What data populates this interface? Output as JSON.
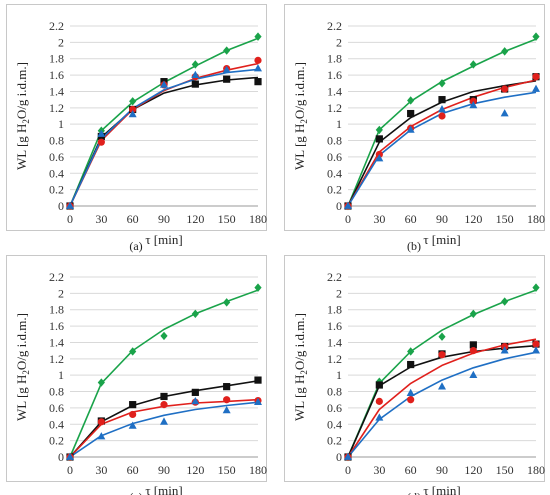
{
  "chart_data": [
    {
      "panel_label": "(a)",
      "type": "scatter",
      "xlabel": "τ [min]",
      "ylabel": "WL [g H2O/g i.d.m.]",
      "x_ticks": [
        0,
        30,
        60,
        90,
        120,
        150,
        180
      ],
      "y_ticks": [
        "0",
        "0.2",
        "0.4",
        "0.6",
        "0.8",
        "1",
        "1.2",
        "1.4",
        "1.6",
        "1.8",
        "2",
        "2.2"
      ],
      "xlim": [
        0,
        180
      ],
      "ylim": [
        0,
        2.2
      ],
      "grid": "horizontal",
      "series": [
        {
          "color": "#1aa34a",
          "marker": "diamond",
          "x": [
            0,
            30,
            60,
            90,
            120,
            150,
            180
          ],
          "values": [
            0,
            0.92,
            1.28,
            1.5,
            1.73,
            1.9,
            2.07
          ],
          "fit": [
            0,
            0.92,
            1.27,
            1.51,
            1.71,
            1.9,
            2.05
          ]
        },
        {
          "color": "#111111",
          "marker": "square",
          "x": [
            0,
            30,
            60,
            90,
            120,
            150,
            180
          ],
          "values": [
            0,
            0.85,
            1.18,
            1.52,
            1.49,
            1.55,
            1.52
          ],
          "fit": [
            0,
            0.84,
            1.18,
            1.38,
            1.48,
            1.54,
            1.57
          ]
        },
        {
          "color": "#e0201c",
          "marker": "circle",
          "x": [
            0,
            30,
            60,
            90,
            120,
            150,
            180
          ],
          "values": [
            0,
            0.78,
            1.18,
            1.48,
            1.58,
            1.68,
            1.78
          ],
          "fit": [
            0,
            0.8,
            1.18,
            1.41,
            1.56,
            1.66,
            1.74
          ]
        },
        {
          "color": "#1f6fc4",
          "marker": "triangle",
          "x": [
            0,
            30,
            60,
            90,
            120,
            150,
            180
          ],
          "values": [
            0,
            0.88,
            1.12,
            1.48,
            1.6,
            1.66,
            1.68
          ],
          "fit": [
            0,
            0.82,
            1.19,
            1.42,
            1.55,
            1.63,
            1.67
          ]
        }
      ]
    },
    {
      "panel_label": "(b)",
      "type": "scatter",
      "xlabel": "τ [min]",
      "ylabel": "WL [g H2O/g i.d.m.]",
      "x_ticks": [
        0,
        30,
        60,
        90,
        120,
        150,
        180
      ],
      "y_ticks": [
        "0",
        "0.2",
        "0.4",
        "0.6",
        "0.8",
        "1",
        "1.2",
        "1.4",
        "1.6",
        "1.8",
        "2",
        "2.2"
      ],
      "xlim": [
        0,
        180
      ],
      "ylim": [
        0,
        2.2
      ],
      "grid": "horizontal",
      "series": [
        {
          "color": "#1aa34a",
          "marker": "diamond",
          "x": [
            0,
            30,
            60,
            90,
            120,
            150,
            180
          ],
          "values": [
            0,
            0.93,
            1.29,
            1.5,
            1.73,
            1.89,
            2.07
          ],
          "fit": [
            0,
            0.93,
            1.28,
            1.52,
            1.71,
            1.89,
            2.04
          ]
        },
        {
          "color": "#111111",
          "marker": "square",
          "x": [
            0,
            30,
            60,
            90,
            120,
            150,
            180
          ],
          "values": [
            0,
            0.82,
            1.13,
            1.3,
            1.3,
            1.43,
            1.58
          ],
          "fit": [
            0,
            0.78,
            1.08,
            1.27,
            1.4,
            1.47,
            1.53
          ]
        },
        {
          "color": "#e0201c",
          "marker": "circle",
          "x": [
            0,
            30,
            60,
            90,
            120,
            150,
            180
          ],
          "values": [
            0,
            0.63,
            0.95,
            1.1,
            1.28,
            1.43,
            1.58
          ],
          "fit": [
            0,
            0.66,
            0.97,
            1.18,
            1.33,
            1.45,
            1.54
          ]
        },
        {
          "color": "#1f6fc4",
          "marker": "triangle",
          "x": [
            0,
            30,
            60,
            90,
            120,
            150,
            180
          ],
          "values": [
            0,
            0.58,
            0.93,
            1.18,
            1.23,
            1.13,
            1.43
          ],
          "fit": [
            0,
            0.62,
            0.93,
            1.13,
            1.25,
            1.33,
            1.39
          ]
        }
      ]
    },
    {
      "panel_label": "(c)",
      "type": "scatter",
      "xlabel": "τ [min]",
      "ylabel": "WL [g H2O/g i.d.m.]",
      "x_ticks": [
        0,
        30,
        60,
        90,
        120,
        150,
        180
      ],
      "y_ticks": [
        "0",
        "0.2",
        "0.4",
        "0.6",
        "0.8",
        "1",
        "1.2",
        "1.4",
        "1.6",
        "1.8",
        "2",
        "2.2"
      ],
      "xlim": [
        0,
        180
      ],
      "ylim": [
        0,
        2.2
      ],
      "grid": "horizontal",
      "series": [
        {
          "color": "#1aa34a",
          "marker": "diamond",
          "x": [
            0,
            30,
            60,
            90,
            120,
            150,
            180
          ],
          "values": [
            0,
            0.91,
            1.29,
            1.48,
            1.75,
            1.89,
            2.07
          ],
          "fit": [
            0,
            0.9,
            1.3,
            1.56,
            1.75,
            1.9,
            2.04
          ]
        },
        {
          "color": "#111111",
          "marker": "square",
          "x": [
            0,
            30,
            60,
            90,
            120,
            150,
            180
          ],
          "values": [
            0,
            0.44,
            0.64,
            0.74,
            0.79,
            0.86,
            0.94
          ],
          "fit": [
            0,
            0.43,
            0.63,
            0.74,
            0.81,
            0.87,
            0.93
          ]
        },
        {
          "color": "#e0201c",
          "marker": "circle",
          "x": [
            0,
            30,
            60,
            90,
            120,
            150,
            180
          ],
          "values": [
            0,
            0.43,
            0.52,
            0.64,
            0.67,
            0.7,
            0.69
          ],
          "fit": [
            0,
            0.4,
            0.55,
            0.62,
            0.66,
            0.68,
            0.7
          ]
        },
        {
          "color": "#1f6fc4",
          "marker": "triangle",
          "x": [
            0,
            30,
            60,
            90,
            120,
            150,
            180
          ],
          "values": [
            0,
            0.25,
            0.38,
            0.43,
            0.68,
            0.57,
            0.67
          ],
          "fit": [
            0,
            0.26,
            0.41,
            0.51,
            0.58,
            0.63,
            0.67
          ]
        }
      ]
    },
    {
      "panel_label": "(d)",
      "type": "scatter",
      "xlabel": "τ [min]",
      "ylabel": "WL [g H2O/g i.d.m.]",
      "x_ticks": [
        0,
        30,
        60,
        90,
        120,
        150,
        180
      ],
      "y_ticks": [
        "0",
        "0.2",
        "0.4",
        "0.6",
        "0.8",
        "1",
        "1.2",
        "1.4",
        "1.6",
        "1.8",
        "2",
        "2.2"
      ],
      "xlim": [
        0,
        180
      ],
      "ylim": [
        0,
        2.2
      ],
      "grid": "horizontal",
      "series": [
        {
          "color": "#1aa34a",
          "marker": "diamond",
          "x": [
            0,
            30,
            60,
            90,
            120,
            150,
            180
          ],
          "values": [
            0,
            0.92,
            1.29,
            1.47,
            1.75,
            1.9,
            2.07
          ],
          "fit": [
            0,
            0.9,
            1.29,
            1.55,
            1.74,
            1.9,
            2.04
          ]
        },
        {
          "color": "#111111",
          "marker": "square",
          "x": [
            0,
            30,
            60,
            90,
            120,
            150,
            180
          ],
          "values": [
            0,
            0.88,
            1.13,
            1.26,
            1.37,
            1.35,
            1.38
          ],
          "fit": [
            0,
            0.87,
            1.1,
            1.22,
            1.29,
            1.33,
            1.36
          ]
        },
        {
          "color": "#e0201c",
          "marker": "circle",
          "x": [
            0,
            30,
            60,
            90,
            120,
            150,
            180
          ],
          "values": [
            0,
            0.68,
            0.7,
            1.25,
            1.3,
            1.35,
            1.38
          ],
          "fit": [
            0,
            0.58,
            0.9,
            1.12,
            1.27,
            1.37,
            1.44
          ]
        },
        {
          "color": "#1f6fc4",
          "marker": "triangle",
          "x": [
            0,
            30,
            60,
            90,
            120,
            150,
            180
          ],
          "values": [
            0,
            0.48,
            0.78,
            0.86,
            1.0,
            1.3,
            1.3
          ],
          "fit": [
            0,
            0.46,
            0.74,
            0.94,
            1.09,
            1.2,
            1.28
          ]
        }
      ]
    }
  ]
}
